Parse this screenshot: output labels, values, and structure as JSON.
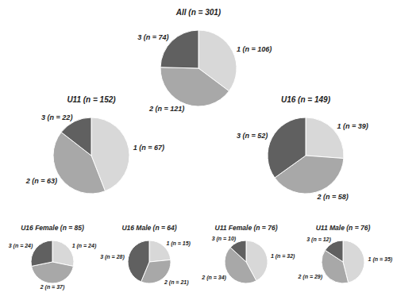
{
  "chart_data": [
    {
      "type": "pie",
      "title": "All (n = 301)",
      "categories": [
        "1 (n = 106)",
        "2 (n = 121)",
        "3 (n = 74)"
      ],
      "values": [
        106,
        121,
        74
      ],
      "colors": [
        "#d8d8d8",
        "#a8a8a8",
        "#606060"
      ]
    },
    {
      "type": "pie",
      "title": "U11 (n = 152)",
      "categories": [
        "1 (n = 67)",
        "2 (n = 63)",
        "3 (n = 22)"
      ],
      "values": [
        67,
        63,
        22
      ],
      "colors": [
        "#d8d8d8",
        "#a8a8a8",
        "#606060"
      ]
    },
    {
      "type": "pie",
      "title": "U16 (n = 149)",
      "categories": [
        "1 (n = 39)",
        "2 (n = 58)",
        "3 (n = 52)"
      ],
      "values": [
        39,
        58,
        52
      ],
      "colors": [
        "#d8d8d8",
        "#a8a8a8",
        "#606060"
      ]
    },
    {
      "type": "pie",
      "title": "U16 Female (n = 85)",
      "categories": [
        "1 (n = 24)",
        "2 (n = 37)",
        "3 (n = 24)"
      ],
      "values": [
        24,
        37,
        24
      ],
      "colors": [
        "#d8d8d8",
        "#a8a8a8",
        "#606060"
      ]
    },
    {
      "type": "pie",
      "title": "U16 Male (n = 64)",
      "categories": [
        "1 (n = 15)",
        "2 (n = 21)",
        "3 (n = 28)"
      ],
      "values": [
        15,
        21,
        28
      ],
      "colors": [
        "#d8d8d8",
        "#a8a8a8",
        "#606060"
      ]
    },
    {
      "type": "pie",
      "title": "U11 Female (n = 76)",
      "categories": [
        "1 (n = 32)",
        "2 (n = 34)",
        "3 (n = 10)"
      ],
      "values": [
        32,
        34,
        10
      ],
      "colors": [
        "#d8d8d8",
        "#a8a8a8",
        "#606060"
      ]
    },
    {
      "type": "pie",
      "title": "U11 Male (n = 76)",
      "categories": [
        "1 (n = 35)",
        "2 (n = 29)",
        "3 (n = 12)"
      ],
      "values": [
        35,
        29,
        12
      ],
      "colors": [
        "#d8d8d8",
        "#a8a8a8",
        "#606060"
      ]
    }
  ]
}
